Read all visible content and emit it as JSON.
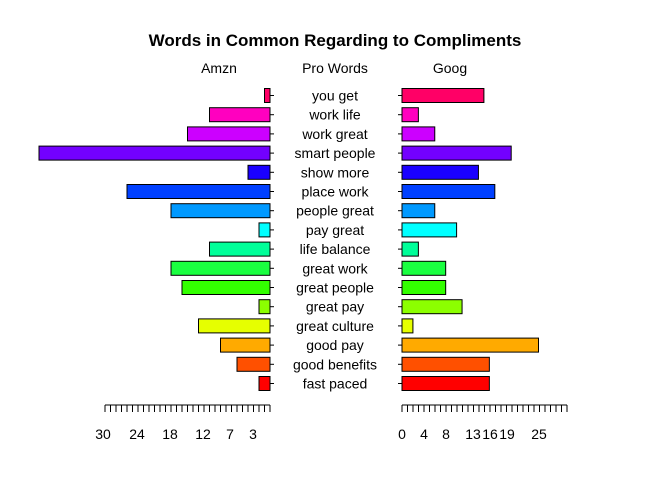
{
  "chart_data": {
    "type": "bar",
    "orientation": "horizontal-back-to-back",
    "title": "Words in Common Regarding to Compliments",
    "center_label": "Pro Words",
    "categories": [
      "fast paced",
      "good benefits",
      "good pay",
      "great culture",
      "great pay",
      "great people",
      "great work",
      "life balance",
      "pay great",
      "people great",
      "place work",
      "show more",
      "smart people",
      "work great",
      "work life",
      "you get"
    ],
    "colors": [
      "#FF0000",
      "#FF5000",
      "#FFAA00",
      "#E6FF00",
      "#8CFF00",
      "#33FF00",
      "#1AFF40",
      "#00FF99",
      "#00FFFF",
      "#0099FF",
      "#0040FF",
      "#1A00FF",
      "#7300FF",
      "#CC00FF",
      "#FF00BF",
      "#FF0066"
    ],
    "series": [
      {
        "name": "Amzn",
        "values": [
          2,
          6,
          9,
          13,
          2,
          16,
          18,
          11,
          2,
          18,
          26,
          4,
          42,
          15,
          11,
          1
        ]
      },
      {
        "name": "Goog",
        "values": [
          16,
          16,
          25,
          2,
          11,
          8,
          8,
          3,
          10,
          6,
          17,
          14,
          20,
          6,
          3,
          15
        ]
      }
    ],
    "left_axis": {
      "ticks": [
        30,
        24,
        18,
        12,
        7,
        3
      ]
    },
    "right_axis": {
      "ticks": [
        0,
        4,
        8,
        13,
        16,
        19,
        25
      ]
    }
  }
}
